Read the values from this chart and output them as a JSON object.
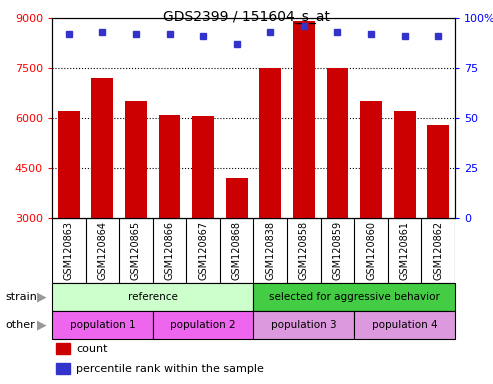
{
  "title": "GDS2399 / 151604_s_at",
  "samples": [
    "GSM120863",
    "GSM120864",
    "GSM120865",
    "GSM120866",
    "GSM120867",
    "GSM120868",
    "GSM120838",
    "GSM120858",
    "GSM120859",
    "GSM120860",
    "GSM120861",
    "GSM120862"
  ],
  "counts": [
    6200,
    7200,
    6500,
    6100,
    6050,
    4200,
    7500,
    8900,
    7500,
    6500,
    6200,
    5800
  ],
  "percentiles": [
    92,
    93,
    92,
    92,
    91,
    87,
    93,
    96,
    93,
    92,
    91,
    91
  ],
  "ylim_left": [
    3000,
    9000
  ],
  "ylim_right": [
    0,
    100
  ],
  "yticks_left": [
    3000,
    4500,
    6000,
    7500,
    9000
  ],
  "yticks_right": [
    0,
    25,
    50,
    75,
    100
  ],
  "bar_color": "#cc0000",
  "dot_color": "#3333cc",
  "bg_color": "#ffffff",
  "plot_bg": "#ffffff",
  "xtick_bg": "#cccccc",
  "strain_groups": [
    {
      "label": "reference",
      "start": 0,
      "end": 6,
      "color": "#ccffcc"
    },
    {
      "label": "selected for aggressive behavior",
      "start": 6,
      "end": 12,
      "color": "#44cc44"
    }
  ],
  "other_groups": [
    {
      "label": "population 1",
      "start": 0,
      "end": 3,
      "color": "#ee66ee"
    },
    {
      "label": "population 2",
      "start": 3,
      "end": 6,
      "color": "#ee66ee"
    },
    {
      "label": "population 3",
      "start": 6,
      "end": 9,
      "color": "#dd99dd"
    },
    {
      "label": "population 4",
      "start": 9,
      "end": 12,
      "color": "#dd99dd"
    }
  ],
  "strain_label": "strain",
  "other_label": "other",
  "legend_count": "count",
  "legend_percentile": "percentile rank within the sample",
  "fig_w": 493,
  "fig_h": 384
}
